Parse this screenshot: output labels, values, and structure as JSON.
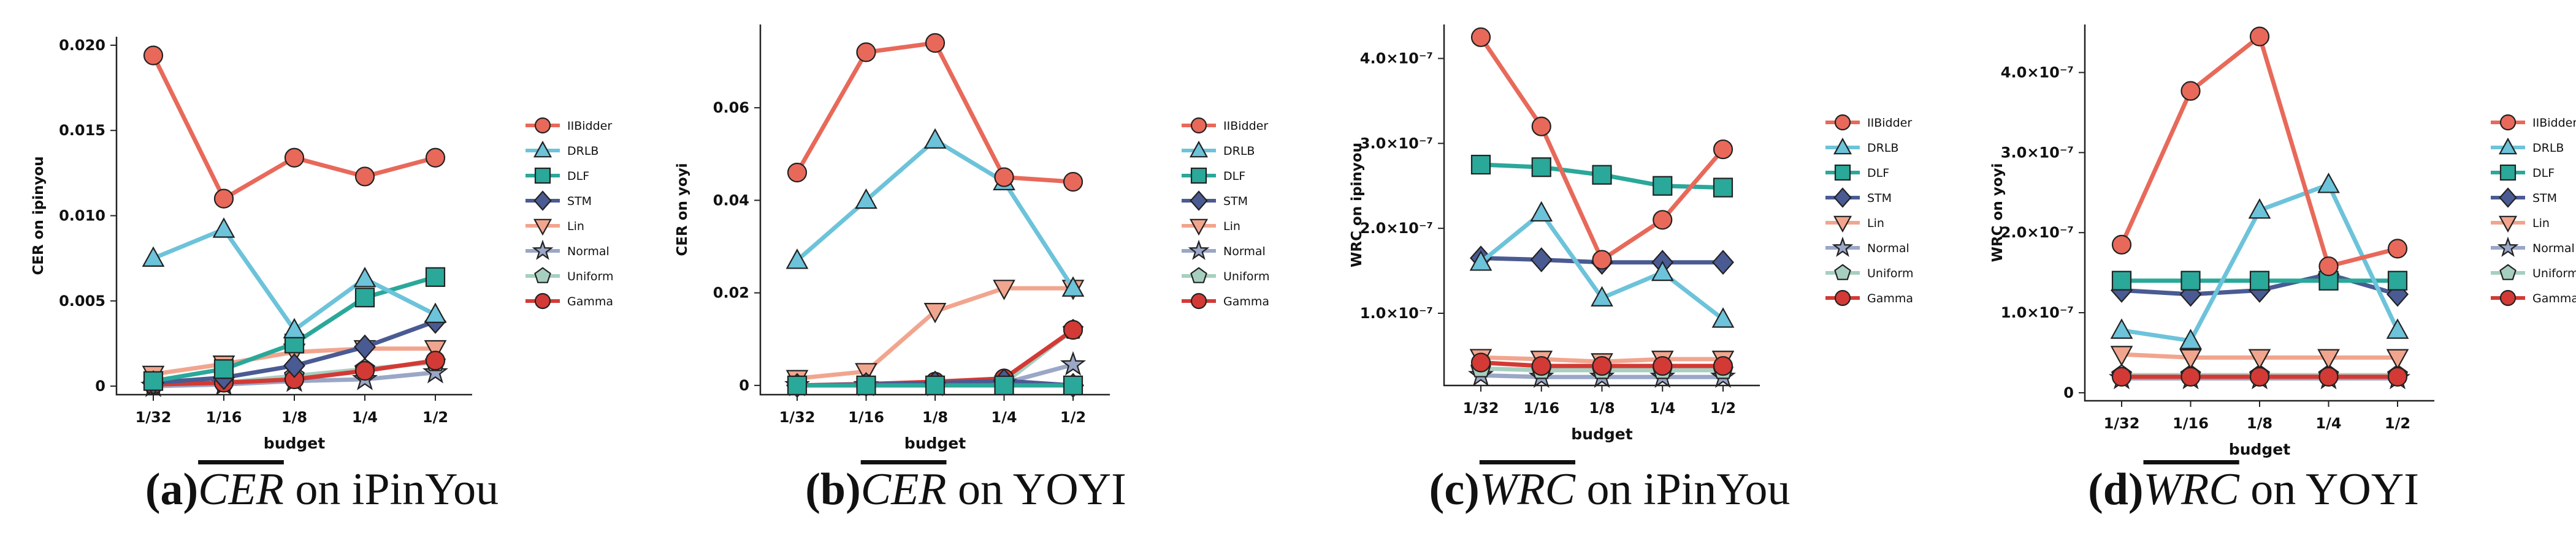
{
  "colors": {
    "IIBidder": "#e8695a",
    "DRLB": "#6cc3da",
    "DLF": "#2aa89a",
    "STM": "#4a5a92",
    "Lin": "#f2a58e",
    "Normal": "#9aa7c6",
    "Uniform": "#a7cfc0",
    "Gamma": "#d33a35"
  },
  "markers": {
    "IIBidder": "circle",
    "DRLB": "triangle-up",
    "DLF": "square",
    "STM": "diamond",
    "Lin": "triangle-down",
    "Normal": "star",
    "Uniform": "pentagon",
    "Gamma": "circle"
  },
  "chart_data": [
    {
      "type": "line",
      "caption": {
        "letter": "(a)",
        "metric": "CER",
        "suffix": "on iPinYou"
      },
      "xlabel": "budget",
      "ylabel": "CER on ipinyou",
      "categories": [
        "1/32",
        "1/16",
        "1/8",
        "1/4",
        "1/2"
      ],
      "ylim": [
        -0.0005,
        0.0205
      ],
      "yticks": [
        0,
        0.005,
        0.01,
        0.015,
        0.02
      ],
      "yticklabels": [
        "0",
        "0.005",
        "0.010",
        "0.015",
        "0.020"
      ],
      "legend_position": "right",
      "series": [
        {
          "name": "IIBidder",
          "values": [
            0.0194,
            0.011,
            0.0134,
            0.0123,
            0.0134
          ]
        },
        {
          "name": "DRLB",
          "values": [
            0.0075,
            0.0092,
            0.0033,
            0.0063,
            0.0042
          ]
        },
        {
          "name": "DLF",
          "values": [
            0.0003,
            0.001,
            0.0025,
            0.0052,
            0.0064
          ]
        },
        {
          "name": "STM",
          "values": [
            0.0002,
            0.0005,
            0.0012,
            0.0023,
            0.0038
          ]
        },
        {
          "name": "Lin",
          "values": [
            0.0007,
            0.0013,
            0.002,
            0.0022,
            0.0022
          ]
        },
        {
          "name": "Normal",
          "values": [
            0.0,
            0.0001,
            0.0003,
            0.0004,
            0.0008
          ]
        },
        {
          "name": "Uniform",
          "values": [
            0.0001,
            0.0002,
            0.0006,
            0.001,
            0.0014
          ]
        },
        {
          "name": "Gamma",
          "values": [
            0.0001,
            0.0002,
            0.0004,
            0.0009,
            0.0015
          ]
        }
      ]
    },
    {
      "type": "line",
      "caption": {
        "letter": "(b)",
        "metric": "CER",
        "suffix": "on YOYI"
      },
      "xlabel": "budget",
      "ylabel": "CER on yoyi",
      "categories": [
        "1/32",
        "1/16",
        "1/8",
        "1/4",
        "1/2"
      ],
      "ylim": [
        -0.002,
        0.078
      ],
      "yticks": [
        0,
        0.02,
        0.04,
        0.06
      ],
      "yticklabels": [
        "0",
        "0.02",
        "0.04",
        "0.06"
      ],
      "legend_position": "right",
      "series": [
        {
          "name": "IIBidder",
          "values": [
            0.046,
            0.072,
            0.074,
            0.045,
            0.044
          ]
        },
        {
          "name": "DRLB",
          "values": [
            0.027,
            0.04,
            0.053,
            0.044,
            0.021
          ]
        },
        {
          "name": "DLF",
          "values": [
            0.0,
            0.0,
            0.0,
            0.0,
            0.0
          ]
        },
        {
          "name": "STM",
          "values": [
            0.0,
            0.0002,
            0.0005,
            0.001,
            0.0
          ]
        },
        {
          "name": "Lin",
          "values": [
            0.0015,
            0.003,
            0.016,
            0.021,
            0.021
          ]
        },
        {
          "name": "Normal",
          "values": [
            0.0,
            0.0,
            0.0,
            0.0005,
            0.0045
          ]
        },
        {
          "name": "Uniform",
          "values": [
            0.0,
            0.0,
            0.0,
            0.0005,
            0.012
          ]
        },
        {
          "name": "Gamma",
          "values": [
            0.0,
            0.0003,
            0.0008,
            0.0015,
            0.012
          ]
        }
      ]
    },
    {
      "type": "line",
      "caption": {
        "letter": "(c)",
        "metric": "WRC",
        "suffix": "on iPinYou"
      },
      "xlabel": "budget",
      "ylabel": "WRC on ipinyou",
      "categories": [
        "1/32",
        "1/16",
        "1/8",
        "1/4",
        "1/2"
      ],
      "ylim": [
        1.5e-08,
        4.4e-07
      ],
      "yticks": [
        1e-07,
        2e-07,
        3e-07,
        4e-07
      ],
      "yticklabels": [
        "1.0×10⁻⁷",
        "2.0×10⁻⁷",
        "3.0×10⁻⁷",
        "4.0×10⁻⁷"
      ],
      "legend_position": "right",
      "series": [
        {
          "name": "IIBidder",
          "values": [
            4.25e-07,
            3.2e-07,
            1.63e-07,
            2.1e-07,
            2.93e-07
          ]
        },
        {
          "name": "DRLB",
          "values": [
            1.6e-07,
            2.18e-07,
            1.18e-07,
            1.48e-07,
            9.3e-08
          ]
        },
        {
          "name": "DLF",
          "values": [
            2.75e-07,
            2.72e-07,
            2.63e-07,
            2.5e-07,
            2.48e-07
          ]
        },
        {
          "name": "STM",
          "values": [
            1.65e-07,
            1.63e-07,
            1.6e-07,
            1.6e-07,
            1.6e-07
          ]
        },
        {
          "name": "Lin",
          "values": [
            4.8e-08,
            4.6e-08,
            4.3e-08,
            4.6e-08,
            4.6e-08
          ]
        },
        {
          "name": "Normal",
          "values": [
            2.7e-08,
            2.5e-08,
            2.5e-08,
            2.5e-08,
            2.5e-08
          ]
        },
        {
          "name": "Uniform",
          "values": [
            3.5e-08,
            3.3e-08,
            3.3e-08,
            3.3e-08,
            3.3e-08
          ]
        },
        {
          "name": "Gamma",
          "values": [
            4.2e-08,
            3.8e-08,
            3.8e-08,
            3.8e-08,
            3.8e-08
          ]
        }
      ]
    },
    {
      "type": "line",
      "caption": {
        "letter": "(d)",
        "metric": "WRC",
        "suffix": "on YOYI"
      },
      "xlabel": "budget",
      "ylabel": "WRC on yoyi",
      "categories": [
        "1/32",
        "1/16",
        "1/8",
        "1/4",
        "1/2"
      ],
      "ylim": [
        -1e-08,
        4.6e-07
      ],
      "yticks": [
        0,
        1e-07,
        2e-07,
        3e-07,
        4e-07
      ],
      "yticklabels": [
        "0",
        "1.0×10⁻⁷",
        "2.0×10⁻⁷",
        "3.0×10⁻⁷",
        "4.0×10⁻⁷"
      ],
      "legend_position": "right",
      "series": [
        {
          "name": "IIBidder",
          "values": [
            1.85e-07,
            3.77e-07,
            4.45e-07,
            1.58e-07,
            1.8e-07
          ]
        },
        {
          "name": "DRLB",
          "values": [
            7.8e-08,
            6.5e-08,
            2.28e-07,
            2.6e-07,
            7.8e-08
          ]
        },
        {
          "name": "DLF",
          "values": [
            1.4e-07,
            1.4e-07,
            1.4e-07,
            1.4e-07,
            1.4e-07
          ]
        },
        {
          "name": "STM",
          "values": [
            1.28e-07,
            1.23e-07,
            1.28e-07,
            1.48e-07,
            1.23e-07
          ]
        },
        {
          "name": "Lin",
          "values": [
            4.8e-08,
            4.4e-08,
            4.4e-08,
            4.4e-08,
            4.4e-08
          ]
        },
        {
          "name": "Normal",
          "values": [
            1.8e-08,
            1.8e-08,
            1.8e-08,
            1.8e-08,
            1.8e-08
          ]
        },
        {
          "name": "Uniform",
          "values": [
            2.2e-08,
            2.2e-08,
            2.2e-08,
            2.2e-08,
            2.2e-08
          ]
        },
        {
          "name": "Gamma",
          "values": [
            2e-08,
            2e-08,
            2e-08,
            2e-08,
            2e-08
          ]
        }
      ]
    }
  ]
}
